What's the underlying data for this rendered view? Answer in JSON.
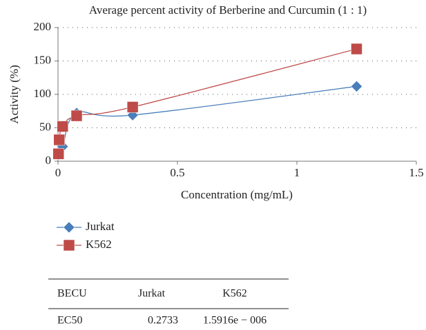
{
  "chart_data": {
    "type": "scatter",
    "title": "Average percent activity of Berberine and Curcumin (1 : 1)",
    "x_label": "Concentration (mg/mL)",
    "y_label": "Activity (%)",
    "x": [
      0.002,
      0.005,
      0.0195,
      0.078,
      0.3125,
      1.25
    ],
    "series": [
      {
        "name": "Jurkat",
        "color": "#4a7ebb",
        "marker": "diamond",
        "values": [
          10,
          28,
          22,
          72,
          69,
          112
        ]
      },
      {
        "name": "K562",
        "color": "#be4b48",
        "marker": "square",
        "values": [
          11,
          32,
          52,
          68,
          81,
          168
        ]
      }
    ],
    "xlim": [
      0,
      1.5
    ],
    "xticks": [
      0,
      0.5,
      1,
      1.5
    ],
    "ylim": [
      0,
      200
    ],
    "yticks": [
      0,
      50,
      100,
      150,
      200
    ],
    "grid": true,
    "smooth": true
  },
  "table": {
    "header": [
      "BECU",
      "Jurkat",
      "K562"
    ],
    "rows": [
      [
        "EC50",
        "0.2733",
        "1.5916e − 006"
      ]
    ]
  }
}
